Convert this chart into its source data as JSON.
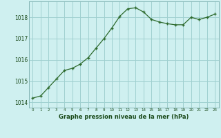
{
  "x": [
    0,
    1,
    2,
    3,
    4,
    5,
    6,
    7,
    8,
    9,
    10,
    11,
    12,
    13,
    14,
    15,
    16,
    17,
    18,
    19,
    20,
    21,
    22,
    23
  ],
  "y": [
    1014.2,
    1014.3,
    1014.7,
    1015.1,
    1015.5,
    1015.6,
    1015.8,
    1016.1,
    1016.55,
    1017.0,
    1017.5,
    1018.05,
    1018.4,
    1018.45,
    1018.25,
    1017.9,
    1017.78,
    1017.7,
    1017.65,
    1017.65,
    1018.0,
    1017.9,
    1018.0,
    1018.15
  ],
  "ylim": [
    1013.75,
    1018.75
  ],
  "yticks": [
    1014,
    1015,
    1016,
    1017,
    1018
  ],
  "xlim": [
    -0.5,
    23.5
  ],
  "xticks": [
    0,
    1,
    2,
    3,
    4,
    5,
    6,
    7,
    8,
    9,
    10,
    11,
    12,
    13,
    14,
    15,
    16,
    17,
    18,
    19,
    20,
    21,
    22,
    23
  ],
  "line_color": "#2d6a2d",
  "marker_color": "#2d6a2d",
  "bg_color": "#cff0f0",
  "grid_color": "#9fcfcf",
  "xlabel": "Graphe pression niveau de la mer (hPa)",
  "xlabel_color": "#1a4a1a",
  "tick_color": "#1a4a1a",
  "fig_bg": "#cff0f0"
}
